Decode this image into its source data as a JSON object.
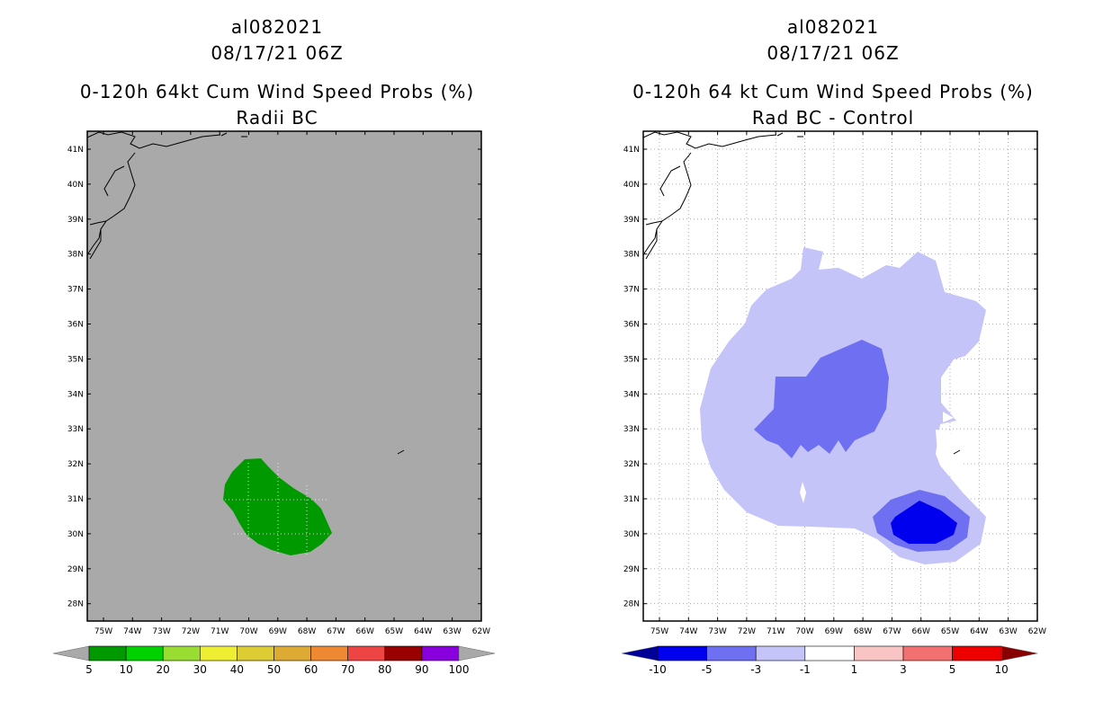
{
  "left_panel": {
    "storm_id": "al082021",
    "datetime": "08/17/21 06Z",
    "product": "0-120h 64kt Cum Wind Speed Probs (%)",
    "subtitle": "Radii BC",
    "background_color": "#a9a9a9",
    "colorbar": {
      "colors": [
        "#009a00",
        "#00d200",
        "#99dd33",
        "#eeee33",
        "#ddcc33",
        "#ddaa33",
        "#ee8833",
        "#ee4444",
        "#990000",
        "#8800dd"
      ],
      "labels": [
        "5",
        "10",
        "20",
        "30",
        "40",
        "50",
        "60",
        "70",
        "80",
        "90",
        "100"
      ],
      "under_color": "#a9a9a9",
      "over_color": "#a9a9a9"
    },
    "legend_color_fill": "#009a00"
  },
  "right_panel": {
    "storm_id": "al082021",
    "datetime": "08/17/21 06Z",
    "product": "0-120h 64 kt Cum Wind Speed Probs (%)",
    "subtitle": "Rad BC - Control",
    "colorbar": {
      "colors": [
        "#0000ee",
        "#6f6ff2",
        "#c4c4f8",
        "#ffffff",
        "#f8c4c4",
        "#f27070",
        "#ee0000"
      ],
      "labels": [
        "-10",
        "-5",
        "-3",
        "-1",
        "1",
        "3",
        "5",
        "10"
      ],
      "under_color": "#000099",
      "over_color": "#880000"
    },
    "fill_colors": {
      "light": "#c4c4f8",
      "medium": "#6f6ff2",
      "dark": "#0000ee"
    }
  },
  "axes": {
    "lat_labels": [
      "41N",
      "40N",
      "39N",
      "38N",
      "37N",
      "36N",
      "35N",
      "34N",
      "33N",
      "32N",
      "31N",
      "30N",
      "29N",
      "28N"
    ],
    "lon_labels": [
      "75W",
      "74W",
      "73W",
      "72W",
      "71W",
      "70W",
      "69W",
      "68W",
      "67W",
      "66W",
      "65W",
      "64W",
      "63W",
      "62W"
    ]
  }
}
